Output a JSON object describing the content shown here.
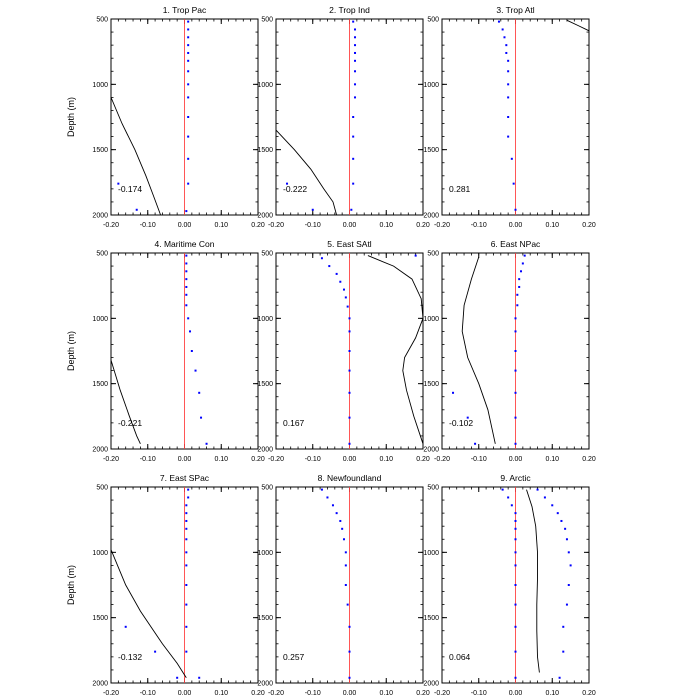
{
  "figure": {
    "ylabel": "Depth (m)"
  },
  "chart_data": [
    {
      "type": "scatter",
      "title": "1. Trop Pac",
      "ylabel": "Depth (m)",
      "xlim": [
        -0.2,
        0.2
      ],
      "ylim": [
        500,
        2000
      ],
      "y_inverted": true,
      "grid": false,
      "x_ticks": [
        "-0.20",
        "-0.10",
        "0.00",
        "0.10",
        "0.20"
      ],
      "y_ticks": [
        "500",
        "1000",
        "1500",
        "2000"
      ],
      "annotation": "-0.174",
      "reference_line": {
        "x": 0.0,
        "color": "#ff4444"
      },
      "line_series": {
        "color": "#000000",
        "x": [
          -0.2,
          -0.17,
          -0.135,
          -0.105,
          -0.085,
          -0.065
        ],
        "y": [
          1100,
          1300,
          1500,
          1700,
          1850,
          2000
        ]
      },
      "blue_points": {
        "color": "#0000ff",
        "x": [
          0.01,
          0.01,
          0.01,
          0.01,
          0.01,
          0.01,
          0.01,
          0.01,
          0.01,
          0.01,
          0.01,
          0.01,
          0.01,
          0.005,
          -0.18,
          -0.13
        ],
        "y": [
          520,
          580,
          640,
          700,
          760,
          820,
          900,
          1000,
          1100,
          1250,
          1400,
          1570,
          1760,
          1970,
          1760,
          1960
        ]
      }
    },
    {
      "type": "scatter",
      "title": "2. Trop Ind",
      "xlim": [
        -0.2,
        0.2
      ],
      "ylim": [
        500,
        2000
      ],
      "y_inverted": true,
      "grid": false,
      "x_ticks": [
        "-0.20",
        "-0.10",
        "0.00",
        "0.10",
        "0.20"
      ],
      "y_ticks": [
        "500",
        "1000",
        "1500",
        "2000"
      ],
      "annotation": "-0.222",
      "reference_line": {
        "x": 0.0,
        "color": "#ff4444"
      },
      "line_series": {
        "color": "#000000",
        "x": [
          -0.2,
          -0.15,
          -0.105,
          -0.07,
          -0.045,
          -0.035
        ],
        "y": [
          1350,
          1500,
          1650,
          1800,
          1900,
          2000
        ]
      },
      "blue_points": {
        "color": "#0000ff",
        "x": [
          0.01,
          0.015,
          0.015,
          0.015,
          0.015,
          0.015,
          0.015,
          0.015,
          0.015,
          0.01,
          0.01,
          0.01,
          0.01,
          0.005,
          -0.17,
          -0.1
        ],
        "y": [
          520,
          580,
          640,
          700,
          760,
          820,
          900,
          1000,
          1100,
          1250,
          1400,
          1570,
          1760,
          1960,
          1760,
          1960
        ]
      }
    },
    {
      "type": "scatter",
      "title": "3. Trop Atl",
      "xlim": [
        -0.2,
        0.2
      ],
      "ylim": [
        500,
        2000
      ],
      "y_inverted": true,
      "grid": false,
      "x_ticks": [
        "-0.20",
        "-0.10",
        "0.00",
        "0.10",
        "0.20"
      ],
      "y_ticks": [
        "500",
        "1000",
        "1500",
        "2000"
      ],
      "annotation": "0.281",
      "reference_line": {
        "x": 0.0,
        "color": "#ff4444"
      },
      "line_series": {
        "color": "#000000",
        "x": [
          0.14,
          0.17,
          0.2
        ],
        "y": [
          510,
          550,
          590
        ]
      },
      "blue_points": {
        "color": "#0000ff",
        "x": [
          -0.045,
          -0.035,
          -0.03,
          -0.025,
          -0.025,
          -0.02,
          -0.02,
          -0.02,
          -0.02,
          -0.02,
          -0.02,
          -0.01,
          -0.005,
          0.0
        ],
        "y": [
          520,
          580,
          640,
          700,
          760,
          820,
          900,
          1000,
          1100,
          1250,
          1400,
          1570,
          1760,
          1960
        ]
      }
    },
    {
      "type": "scatter",
      "title": "4. Maritime Con",
      "ylabel": "Depth (m)",
      "xlim": [
        -0.2,
        0.2
      ],
      "ylim": [
        500,
        2000
      ],
      "y_inverted": true,
      "grid": false,
      "x_ticks": [
        "-0.20",
        "-0.10",
        "0.00",
        "0.10",
        "0.20"
      ],
      "y_ticks": [
        "500",
        "1000",
        "1500",
        "2000"
      ],
      "annotation": "-0.221",
      "reference_line": {
        "x": 0.0,
        "color": "#ff4444"
      },
      "line_series": {
        "color": "#000000",
        "x": [
          -0.2,
          -0.175,
          -0.15,
          -0.13,
          -0.12
        ],
        "y": [
          1320,
          1550,
          1750,
          1900,
          1960
        ]
      },
      "blue_points": {
        "color": "#0000ff",
        "x": [
          0.005,
          0.005,
          0.005,
          0.005,
          0.005,
          0.005,
          0.005,
          0.01,
          0.015,
          0.02,
          0.03,
          0.04,
          0.045,
          0.06
        ],
        "y": [
          520,
          580,
          640,
          700,
          760,
          820,
          900,
          1000,
          1100,
          1250,
          1400,
          1570,
          1760,
          1960
        ]
      }
    },
    {
      "type": "scatter",
      "title": "5. East SAtl",
      "xlim": [
        -0.2,
        0.2
      ],
      "ylim": [
        500,
        2000
      ],
      "y_inverted": true,
      "grid": false,
      "x_ticks": [
        "-0.20",
        "-0.10",
        "0.00",
        "0.10",
        "0.20"
      ],
      "y_ticks": [
        "500",
        "1000",
        "1500",
        "2000"
      ],
      "annotation": "0.167",
      "reference_line": {
        "x": 0.0,
        "color": "#ff4444"
      },
      "line_series": {
        "color": "#000000",
        "x": [
          0.05,
          0.12,
          0.17,
          0.195,
          0.2,
          0.18,
          0.15,
          0.145,
          0.155,
          0.175,
          0.2
        ],
        "y": [
          520,
          600,
          700,
          850,
          1000,
          1150,
          1300,
          1400,
          1550,
          1750,
          1960
        ]
      },
      "blue_points": {
        "color": "#0000ff",
        "x": [
          -0.075,
          -0.055,
          -0.035,
          -0.025,
          -0.015,
          -0.01,
          -0.005,
          0.0,
          0.0,
          0.0,
          0.0,
          0.0,
          0.0,
          0.0,
          0.18
        ],
        "y": [
          540,
          600,
          660,
          720,
          780,
          840,
          910,
          1000,
          1100,
          1250,
          1400,
          1570,
          1760,
          1960,
          520
        ]
      }
    },
    {
      "type": "scatter",
      "title": "6. East NPac",
      "xlim": [
        -0.2,
        0.2
      ],
      "ylim": [
        500,
        2000
      ],
      "y_inverted": true,
      "grid": false,
      "x_ticks": [
        "-0.20",
        "-0.10",
        "0.00",
        "0.10",
        "0.20"
      ],
      "y_ticks": [
        "500",
        "1000",
        "1500",
        "2000"
      ],
      "annotation": "-0.102",
      "reference_line": {
        "x": 0.0,
        "color": "#ff4444"
      },
      "line_series": {
        "color": "#000000",
        "x": [
          -0.1,
          -0.12,
          -0.14,
          -0.145,
          -0.13,
          -0.1,
          -0.075,
          -0.055
        ],
        "y": [
          530,
          700,
          900,
          1100,
          1300,
          1500,
          1700,
          1960
        ]
      },
      "blue_points": {
        "color": "#0000ff",
        "x": [
          0.025,
          0.02,
          0.015,
          0.01,
          0.01,
          0.005,
          0.005,
          0.0,
          0.0,
          0.0,
          0.0,
          0.0,
          0.0,
          0.0,
          -0.17,
          -0.13,
          -0.11
        ],
        "y": [
          520,
          580,
          640,
          700,
          760,
          820,
          900,
          1000,
          1100,
          1250,
          1400,
          1570,
          1760,
          1960,
          1570,
          1760,
          1960
        ]
      }
    },
    {
      "type": "scatter",
      "title": "7. East SPac",
      "ylabel": "Depth (m)",
      "xlim": [
        -0.2,
        0.2
      ],
      "ylim": [
        500,
        2000
      ],
      "y_inverted": true,
      "grid": false,
      "x_ticks": [
        "-0.20",
        "-0.10",
        "0.00",
        "0.10",
        "0.20"
      ],
      "y_ticks": [
        "500",
        "1000",
        "1500",
        "2000"
      ],
      "annotation": "-0.132",
      "reference_line": {
        "x": 0.0,
        "color": "#ff4444"
      },
      "line_series": {
        "color": "#000000",
        "x": [
          -0.2,
          -0.16,
          -0.12,
          -0.06,
          -0.02,
          0.005
        ],
        "y": [
          980,
          1250,
          1450,
          1700,
          1850,
          1960
        ]
      },
      "blue_points": {
        "color": "#0000ff",
        "x": [
          0.01,
          0.01,
          0.005,
          0.005,
          0.005,
          0.005,
          0.005,
          0.005,
          0.005,
          0.005,
          0.005,
          0.005,
          0.005,
          0.04,
          -0.16,
          -0.08,
          -0.02
        ],
        "y": [
          520,
          580,
          640,
          700,
          760,
          820,
          900,
          1000,
          1100,
          1250,
          1400,
          1570,
          1760,
          1960,
          1570,
          1760,
          1960
        ]
      }
    },
    {
      "type": "scatter",
      "title": "8. Newfoundland",
      "xlim": [
        -0.2,
        0.2
      ],
      "ylim": [
        500,
        2000
      ],
      "y_inverted": true,
      "grid": false,
      "x_ticks": [
        "-0.20",
        "-0.10",
        "0.00",
        "0.10",
        "0.20"
      ],
      "y_ticks": [
        "500",
        "1000",
        "1500",
        "2000"
      ],
      "annotation": "0.257",
      "reference_line": {
        "x": 0.0,
        "color": "#ff4444"
      },
      "blue_points": {
        "color": "#0000ff",
        "x": [
          -0.075,
          -0.06,
          -0.045,
          -0.035,
          -0.025,
          -0.02,
          -0.015,
          -0.01,
          -0.01,
          -0.01,
          -0.005,
          0.0,
          0.0,
          0.0
        ],
        "y": [
          520,
          580,
          640,
          700,
          760,
          820,
          900,
          1000,
          1100,
          1250,
          1400,
          1570,
          1760,
          1960
        ]
      }
    },
    {
      "type": "scatter",
      "title": "9. Arctic",
      "xlim": [
        -0.2,
        0.2
      ],
      "ylim": [
        500,
        2000
      ],
      "y_inverted": true,
      "grid": false,
      "x_ticks": [
        "-0.20",
        "-0.10",
        "0.00",
        "0.10",
        "0.20"
      ],
      "y_ticks": [
        "500",
        "1000",
        "1500",
        "2000"
      ],
      "annotation": "0.064",
      "reference_line": {
        "x": 0.0,
        "color": "#ff4444"
      },
      "line_series": {
        "color": "#000000",
        "x": [
          0.03,
          0.045,
          0.055,
          0.06,
          0.06,
          0.058,
          0.058,
          0.06,
          0.065
        ],
        "y": [
          520,
          650,
          800,
          1000,
          1200,
          1400,
          1600,
          1800,
          1920
        ]
      },
      "blue_points": {
        "color": "#0000ff",
        "x": [
          -0.035,
          -0.02,
          -0.01,
          0.0,
          0.0,
          0.0,
          0.0,
          0.0,
          0.0,
          0.0,
          0.0,
          0.0,
          0.0,
          0.0,
          0.06,
          0.08,
          0.1,
          0.115,
          0.125,
          0.135,
          0.14,
          0.145,
          0.15,
          0.145,
          0.14,
          0.13,
          0.13,
          0.12
        ],
        "y": [
          520,
          580,
          640,
          700,
          760,
          820,
          900,
          1000,
          1100,
          1250,
          1400,
          1570,
          1760,
          1960,
          520,
          580,
          640,
          700,
          760,
          820,
          900,
          1000,
          1100,
          1250,
          1400,
          1570,
          1760,
          1960
        ]
      }
    }
  ]
}
